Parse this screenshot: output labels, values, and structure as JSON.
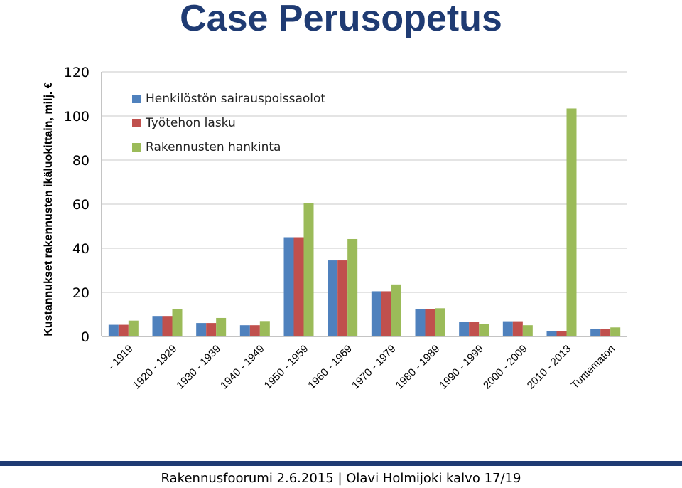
{
  "slide": {
    "title": "Case Perusopetus",
    "footer": "Rakennusfoorumi 2.6.2015 | Olavi Holmijoki kalvo 17/19"
  },
  "colors": {
    "title": "#1f3b73",
    "footer_bar": "#1f3b73",
    "gridline": "#c8c8c8"
  },
  "chart_data": {
    "type": "bar",
    "title": "",
    "xlabel": "",
    "ylabel": "Kustannukset rakennusten ikäluokittain, milj. €",
    "ylim": [
      0,
      120
    ],
    "yticks": [
      0,
      20,
      40,
      60,
      80,
      100,
      120
    ],
    "grid": true,
    "legend_position": "top-left",
    "categories": [
      "- 1919",
      "1920 - 1929",
      "1930 - 1939",
      "1940 - 1949",
      "1950 - 1959",
      "1960 - 1969",
      "1970 - 1979",
      "1980 - 1989",
      "1990 - 1999",
      "2000 - 2009",
      "2010 - 2013",
      "Tuntematon"
    ],
    "series": [
      {
        "name": "Henkilöstön sairauspoissaolot",
        "color": "#4f81bd",
        "values": [
          5.3,
          9.3,
          6.1,
          5.1,
          45,
          34.5,
          20.5,
          12.5,
          6.5,
          6.9,
          2.3,
          3.5
        ]
      },
      {
        "name": "Työtehon lasku",
        "color": "#c0504d",
        "values": [
          5.3,
          9.3,
          6.1,
          5.1,
          45,
          34.5,
          20.5,
          12.5,
          6.5,
          6.9,
          2.3,
          3.5
        ]
      },
      {
        "name": "Rakennusten hankinta",
        "color": "#9bbb59",
        "values": [
          7.2,
          12.5,
          8.4,
          7.0,
          60.5,
          44.2,
          23.6,
          12.8,
          5.8,
          5.1,
          103.4,
          4.1
        ]
      }
    ]
  }
}
